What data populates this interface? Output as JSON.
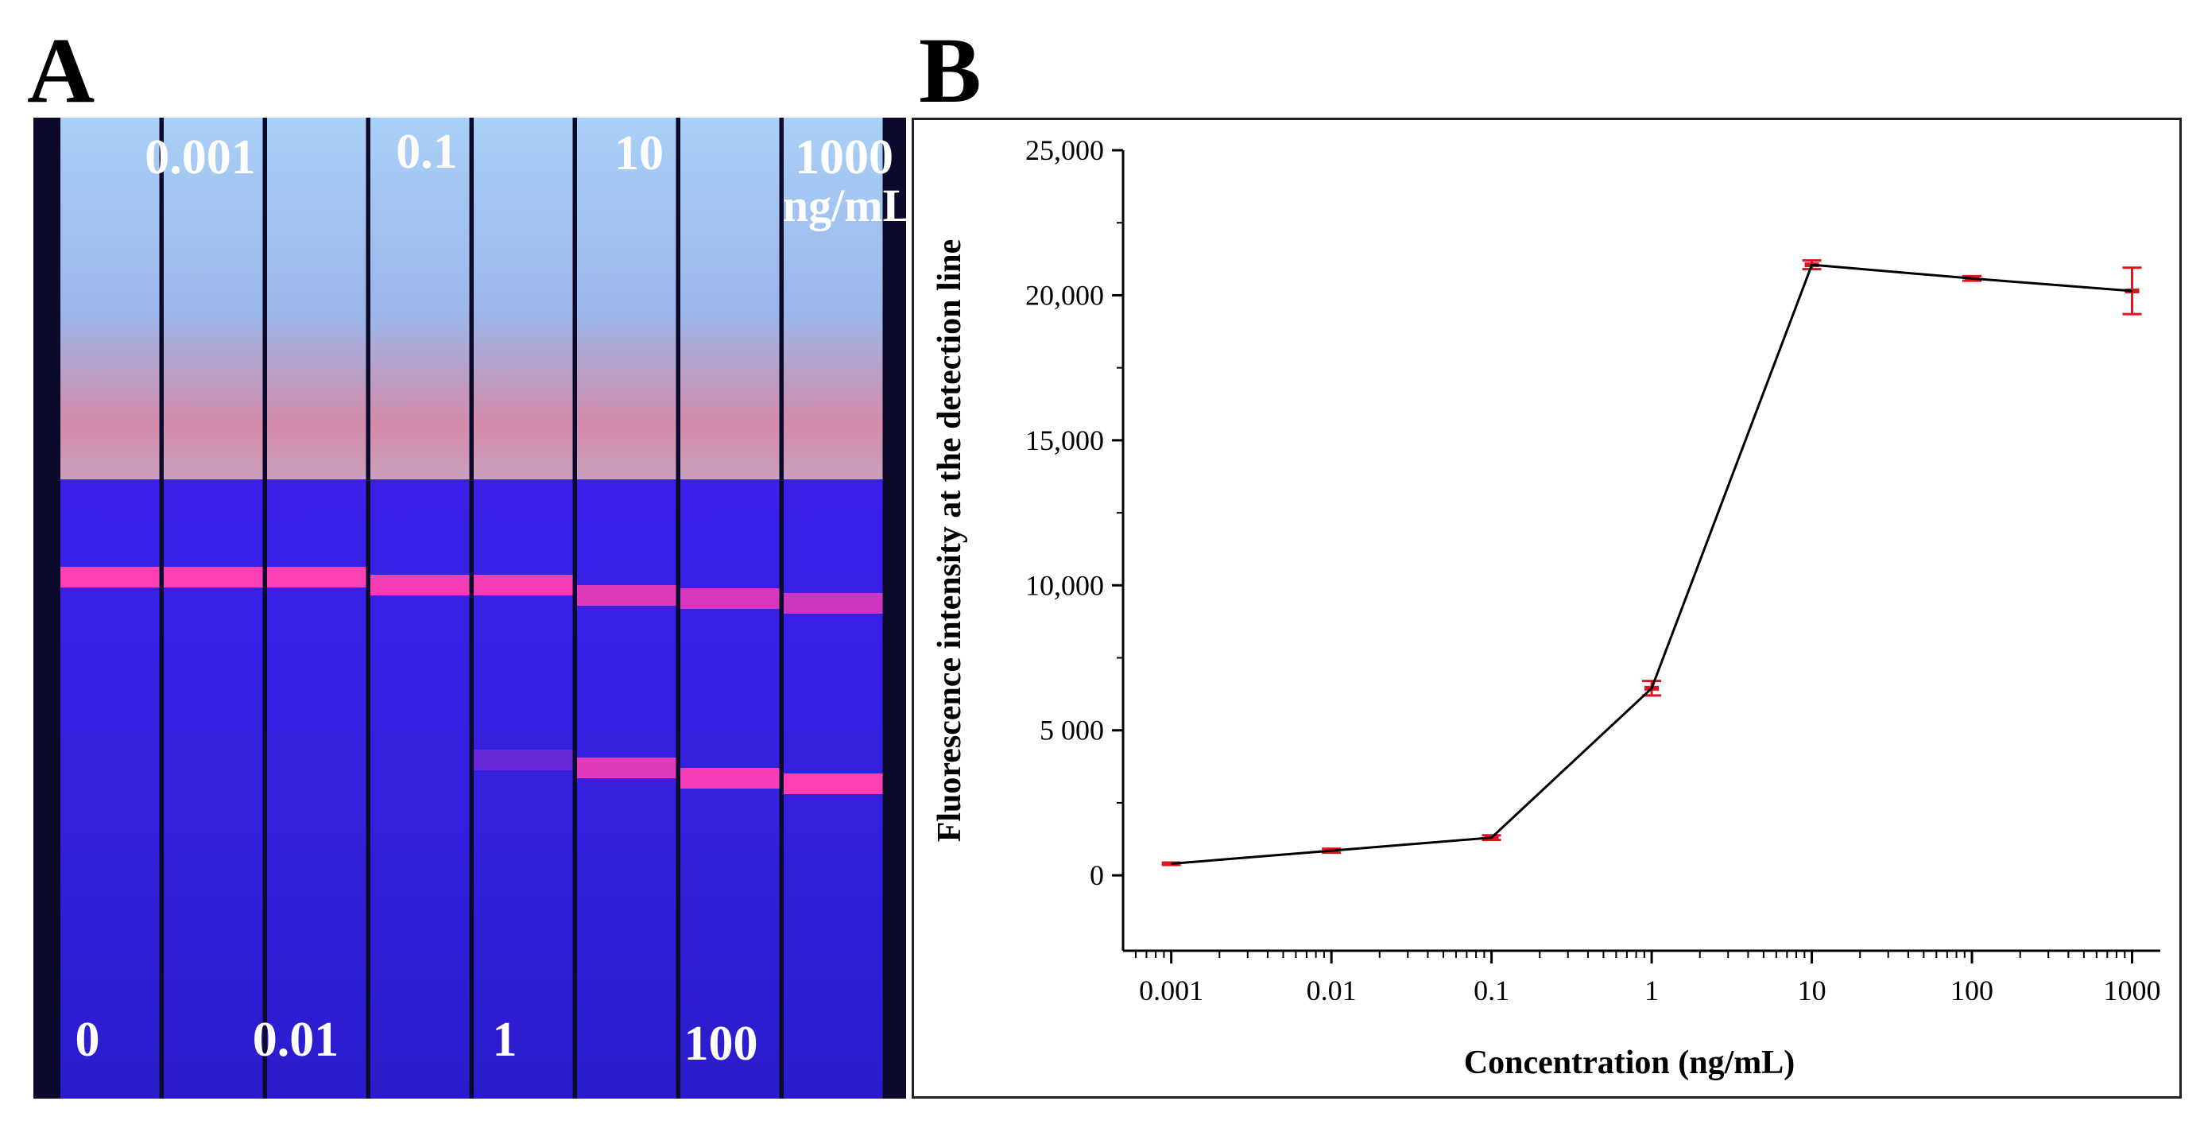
{
  "panels": {
    "a_label": "A",
    "b_label": "B"
  },
  "strips": {
    "top_labels": [
      "0.001",
      "0.1",
      "10",
      "1000"
    ],
    "unit_label": "ng/mL",
    "bottom_labels": [
      "0",
      "0.01",
      "1",
      "100"
    ],
    "colors": {
      "background": "#0b0a2a",
      "pad_top": "#9ec6f2",
      "pad_pink": "#d98aa8",
      "membrane": "#3a22e6",
      "band": "#ff3fb4"
    },
    "control_band_intensity": [
      1,
      1,
      1,
      0.95,
      0.95,
      0.85,
      0.8,
      0.75
    ],
    "test_band_intensity": [
      0,
      0,
      0,
      0,
      0.25,
      0.85,
      0.95,
      1
    ]
  },
  "chart_data": {
    "type": "line",
    "xscale": "log",
    "x": [
      0.001,
      0.01,
      0.1,
      1,
      10,
      100,
      1000
    ],
    "y": [
      400,
      850,
      1300,
      6450,
      21050,
      20580,
      20150
    ],
    "yerr": [
      40,
      70,
      80,
      250,
      150,
      80,
      800
    ],
    "xlim": [
      0.0005,
      1500
    ],
    "ylim": [
      -2600,
      25000
    ],
    "yticks": [
      0,
      5000,
      10000,
      15000,
      20000,
      25000
    ],
    "ytick_labels": [
      "0",
      "5 000",
      "10,000",
      "15,000",
      "20,000",
      "25,000"
    ],
    "xticks": [
      0.001,
      0.01,
      0.1,
      1,
      10,
      100,
      1000
    ],
    "xtick_labels": [
      "0.001",
      "0.01",
      "0.1",
      "1",
      "10",
      "100",
      "1000"
    ],
    "xlabel": "Concentration (ng/mL)",
    "ylabel": "Fluorescence intensity at the detection line",
    "line_color": "#000000",
    "errorbar_color": "#e0141e",
    "grid": false
  }
}
